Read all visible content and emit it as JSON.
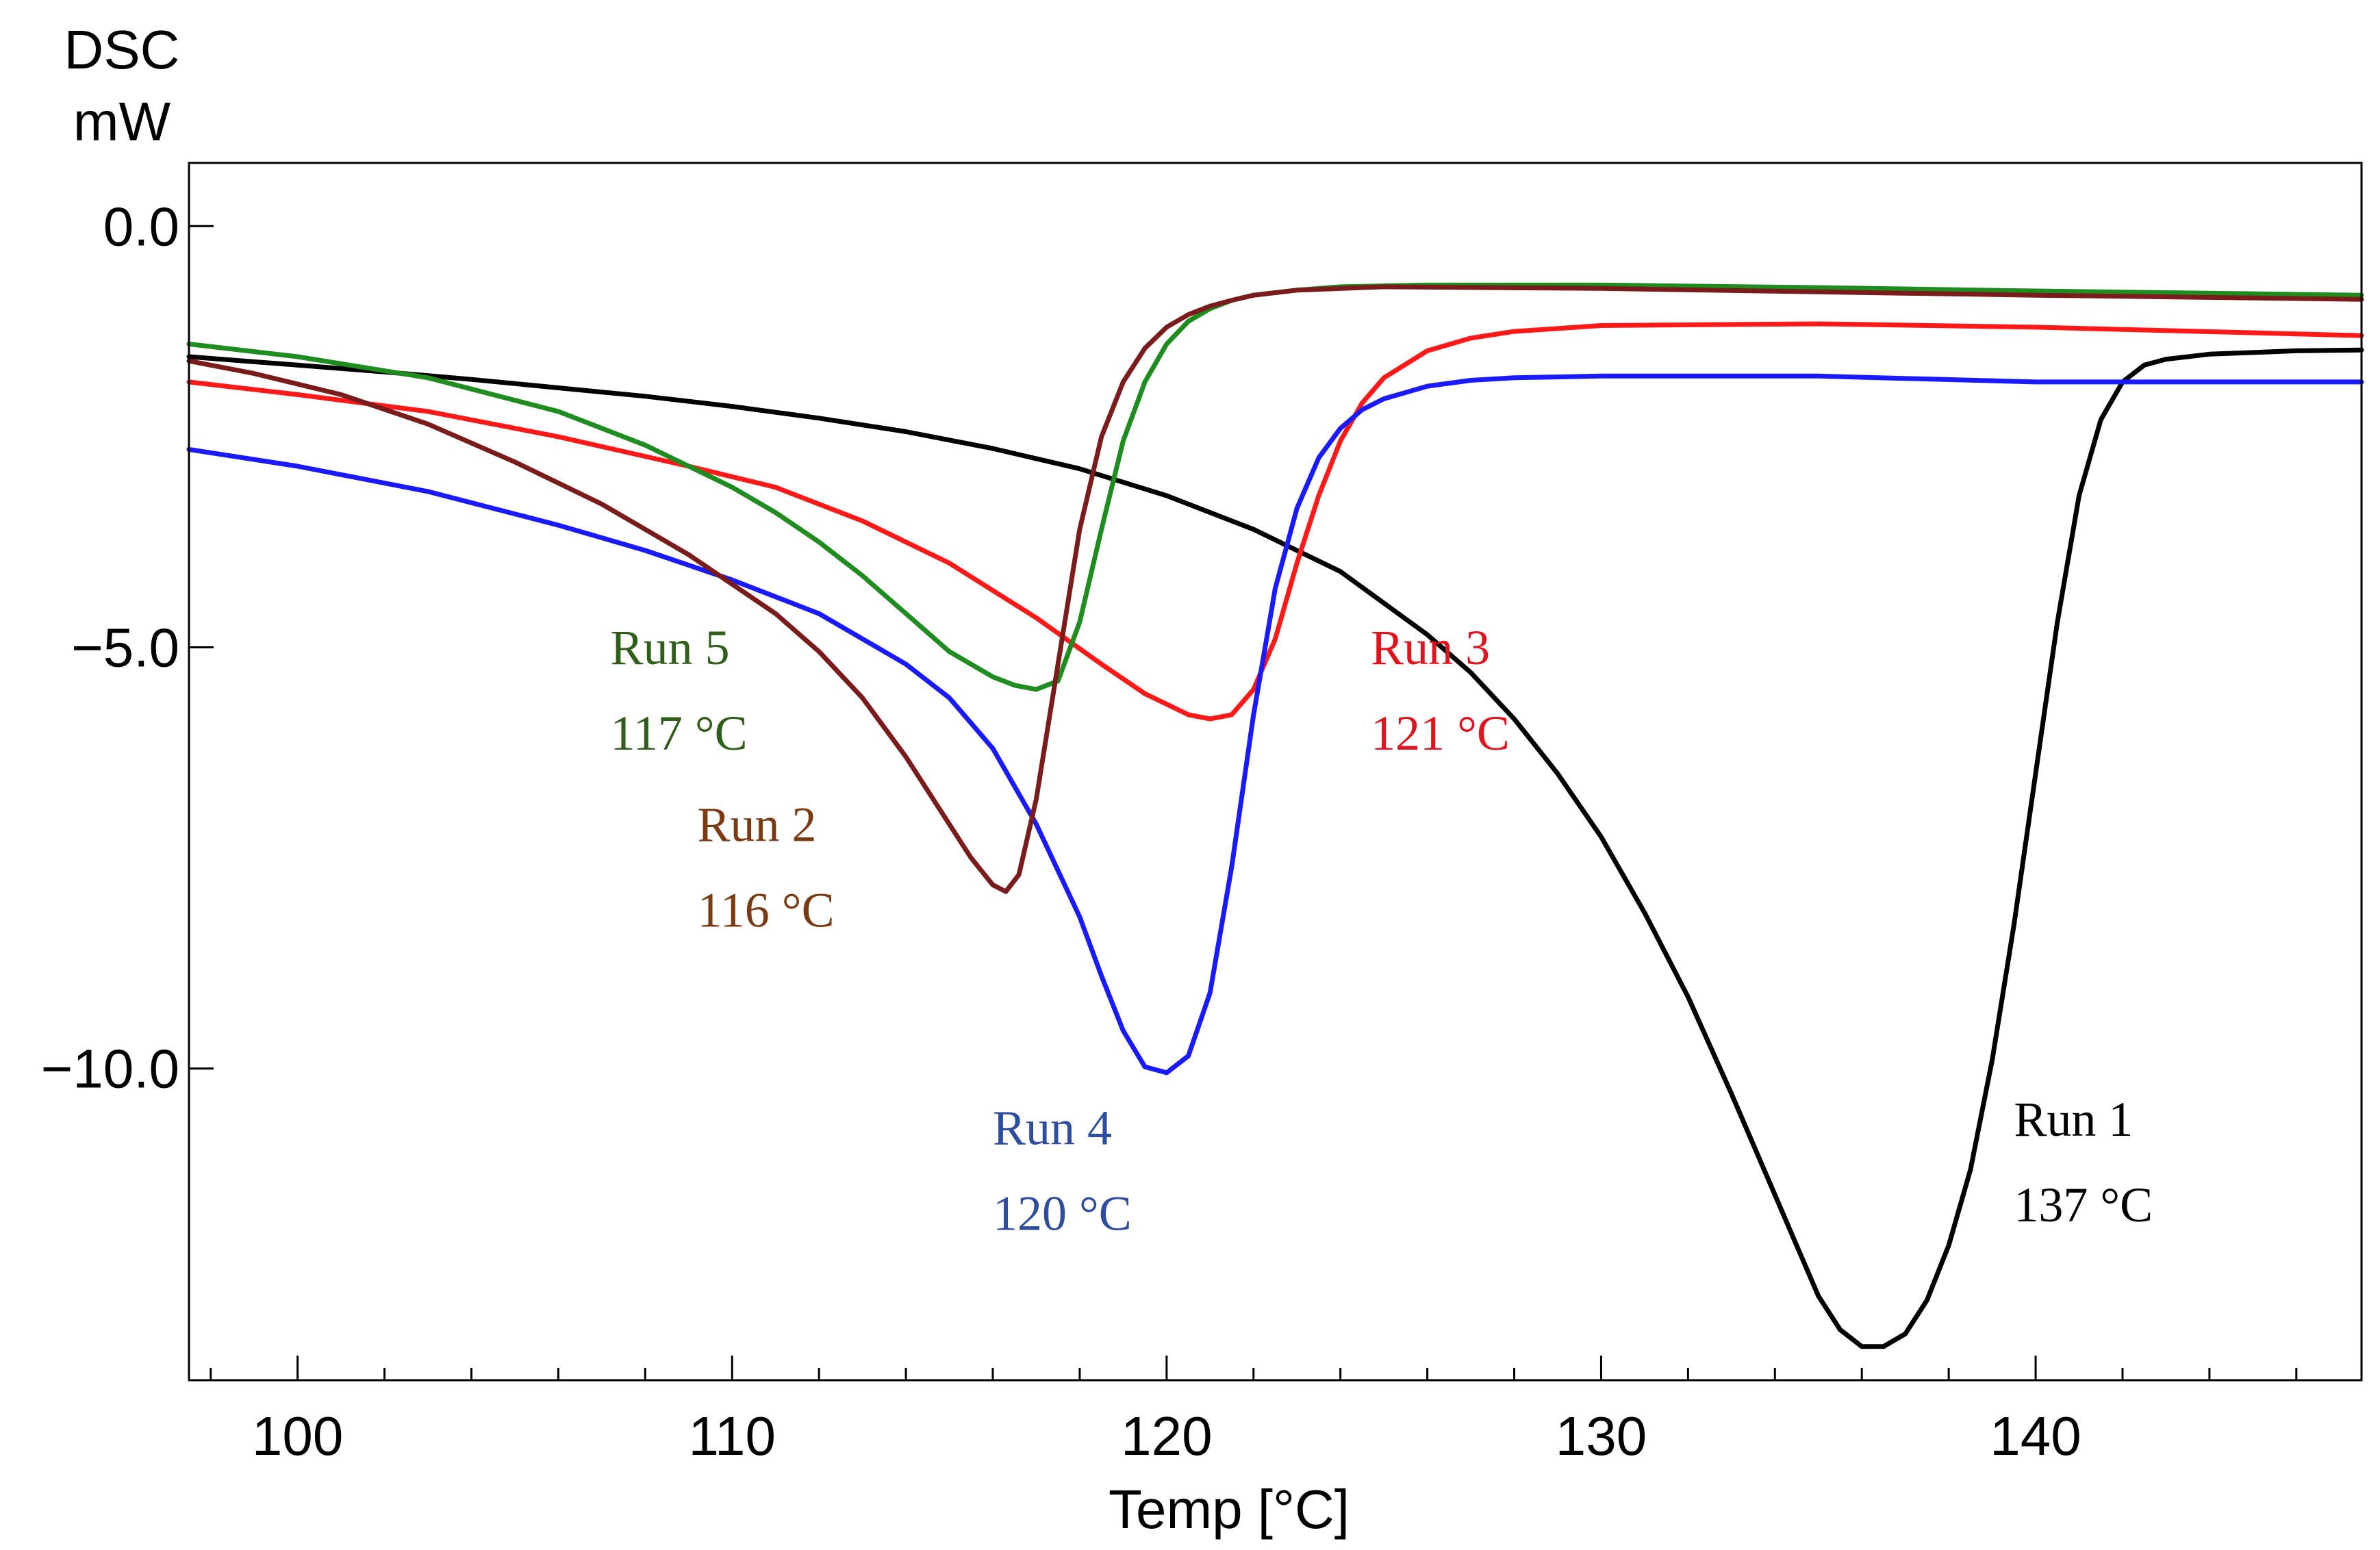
{
  "chart_data": {
    "type": "line",
    "title": "",
    "ylabel_line1": "DSC",
    "ylabel_line2": "mW",
    "xlabel": "Temp  [°C]",
    "xlim": [
      97.5,
      147.5
    ],
    "ylim": [
      -13.7,
      0.75
    ],
    "x_ticks_major": [
      100,
      110,
      120,
      130,
      140
    ],
    "x_tick_labels": [
      "100",
      "110",
      "120",
      "130",
      "140"
    ],
    "x_ticks_minor_step": 2,
    "y_ticks": [
      0,
      -5,
      -10
    ],
    "y_tick_labels": [
      "0.0",
      "−5.0",
      "−10.0"
    ],
    "grid": false,
    "series": [
      {
        "name": "Run 1",
        "peak_label": "137 °C",
        "color": "#000000",
        "label_color": "#000000",
        "label_at": [
          139.5,
          -10.8
        ],
        "x": [
          97.5,
          100,
          102,
          104,
          106,
          108,
          110,
          112,
          114,
          116,
          118,
          120,
          122,
          124,
          126,
          127,
          128,
          129,
          130,
          131,
          132,
          133,
          134,
          134.5,
          135,
          135.5,
          136,
          136.5,
          137,
          137.5,
          138,
          138.5,
          139,
          139.5,
          140,
          140.5,
          141,
          141.5,
          142,
          142.5,
          143,
          144,
          145,
          146,
          147.5
        ],
        "y": [
          -1.55,
          -1.65,
          -1.73,
          -1.82,
          -1.92,
          -2.02,
          -2.14,
          -2.28,
          -2.44,
          -2.64,
          -2.88,
          -3.2,
          -3.6,
          -4.1,
          -4.85,
          -5.3,
          -5.85,
          -6.5,
          -7.25,
          -8.15,
          -9.15,
          -10.3,
          -11.5,
          -12.1,
          -12.7,
          -13.1,
          -13.3,
          -13.3,
          -13.15,
          -12.75,
          -12.1,
          -11.2,
          -9.9,
          -8.3,
          -6.5,
          -4.7,
          -3.2,
          -2.3,
          -1.85,
          -1.65,
          -1.58,
          -1.52,
          -1.5,
          -1.48,
          -1.47
        ]
      },
      {
        "name": "Run 2",
        "peak_label": "116 °C",
        "color": "#7b1c1c",
        "label_color": "#7a3b12",
        "label_at": [
          109.2,
          -7.3
        ],
        "x": [
          97.5,
          99,
          101,
          103,
          105,
          107,
          109,
          111,
          112,
          113,
          114,
          115,
          115.5,
          116,
          116.3,
          116.6,
          117,
          117.5,
          118,
          118.5,
          119,
          119.5,
          120,
          120.5,
          121,
          121.5,
          122,
          123,
          125,
          130,
          135,
          140,
          147.5
        ],
        "y": [
          -1.6,
          -1.75,
          -2.0,
          -2.35,
          -2.8,
          -3.3,
          -3.9,
          -4.6,
          -5.05,
          -5.6,
          -6.3,
          -7.1,
          -7.5,
          -7.82,
          -7.9,
          -7.7,
          -6.8,
          -5.2,
          -3.6,
          -2.5,
          -1.85,
          -1.45,
          -1.2,
          -1.05,
          -0.95,
          -0.88,
          -0.82,
          -0.76,
          -0.72,
          -0.74,
          -0.78,
          -0.82,
          -0.87
        ]
      },
      {
        "name": "Run 3",
        "peak_label": "121 °C",
        "color": "#ff1a1a",
        "label_color": "#e0141e",
        "label_at": [
          124.7,
          -5.2
        ],
        "x": [
          97.5,
          100,
          103,
          106,
          109,
          111,
          113,
          115,
          117,
          118.5,
          119.5,
          120.5,
          121,
          121.5,
          122,
          122.5,
          123,
          123.5,
          124,
          124.5,
          125,
          126,
          127,
          128,
          130,
          135,
          140,
          147.5
        ],
        "y": [
          -1.85,
          -2.0,
          -2.2,
          -2.5,
          -2.85,
          -3.1,
          -3.5,
          -4.0,
          -4.65,
          -5.2,
          -5.55,
          -5.8,
          -5.85,
          -5.8,
          -5.5,
          -4.9,
          -4.0,
          -3.2,
          -2.55,
          -2.1,
          -1.8,
          -1.48,
          -1.33,
          -1.25,
          -1.18,
          -1.16,
          -1.2,
          -1.3
        ]
      },
      {
        "name": "Run 4",
        "peak_label": "120 °C",
        "color": "#1a1aff",
        "label_color": "#2e4d9e",
        "label_at": [
          116.0,
          -10.9
        ],
        "x": [
          97.5,
          100,
          103,
          106,
          108,
          110,
          112,
          114,
          115,
          116,
          117,
          118,
          118.5,
          119,
          119.5,
          120,
          120.5,
          121,
          121.5,
          122,
          122.5,
          123,
          123.5,
          124,
          124.5,
          125,
          126,
          127,
          128,
          130,
          135,
          140,
          147.5
        ],
        "y": [
          -2.65,
          -2.85,
          -3.15,
          -3.55,
          -3.85,
          -4.2,
          -4.6,
          -5.2,
          -5.6,
          -6.2,
          -7.1,
          -8.2,
          -8.9,
          -9.55,
          -9.98,
          -10.05,
          -9.85,
          -9.1,
          -7.6,
          -5.8,
          -4.3,
          -3.35,
          -2.75,
          -2.4,
          -2.18,
          -2.05,
          -1.9,
          -1.83,
          -1.8,
          -1.78,
          -1.78,
          -1.85,
          -1.85
        ]
      },
      {
        "name": "Run 5",
        "peak_label": "117 °C",
        "color": "#1f8c1f",
        "label_color": "#2e5e1a",
        "label_at": [
          107.2,
          -5.2
        ],
        "x": [
          97.5,
          100,
          103,
          106,
          108,
          110,
          111,
          112,
          113,
          114,
          115,
          116,
          116.5,
          117,
          117.5,
          118,
          118.5,
          119,
          119.5,
          120,
          120.5,
          121,
          121.5,
          122,
          123,
          124,
          126,
          130,
          135,
          140,
          147.5
        ],
        "y": [
          -1.4,
          -1.55,
          -1.8,
          -2.2,
          -2.6,
          -3.1,
          -3.4,
          -3.75,
          -4.15,
          -4.6,
          -5.05,
          -5.35,
          -5.45,
          -5.5,
          -5.4,
          -4.7,
          -3.6,
          -2.55,
          -1.85,
          -1.4,
          -1.13,
          -0.98,
          -0.88,
          -0.82,
          -0.76,
          -0.72,
          -0.7,
          -0.7,
          -0.73,
          -0.77,
          -0.82
        ]
      }
    ]
  }
}
